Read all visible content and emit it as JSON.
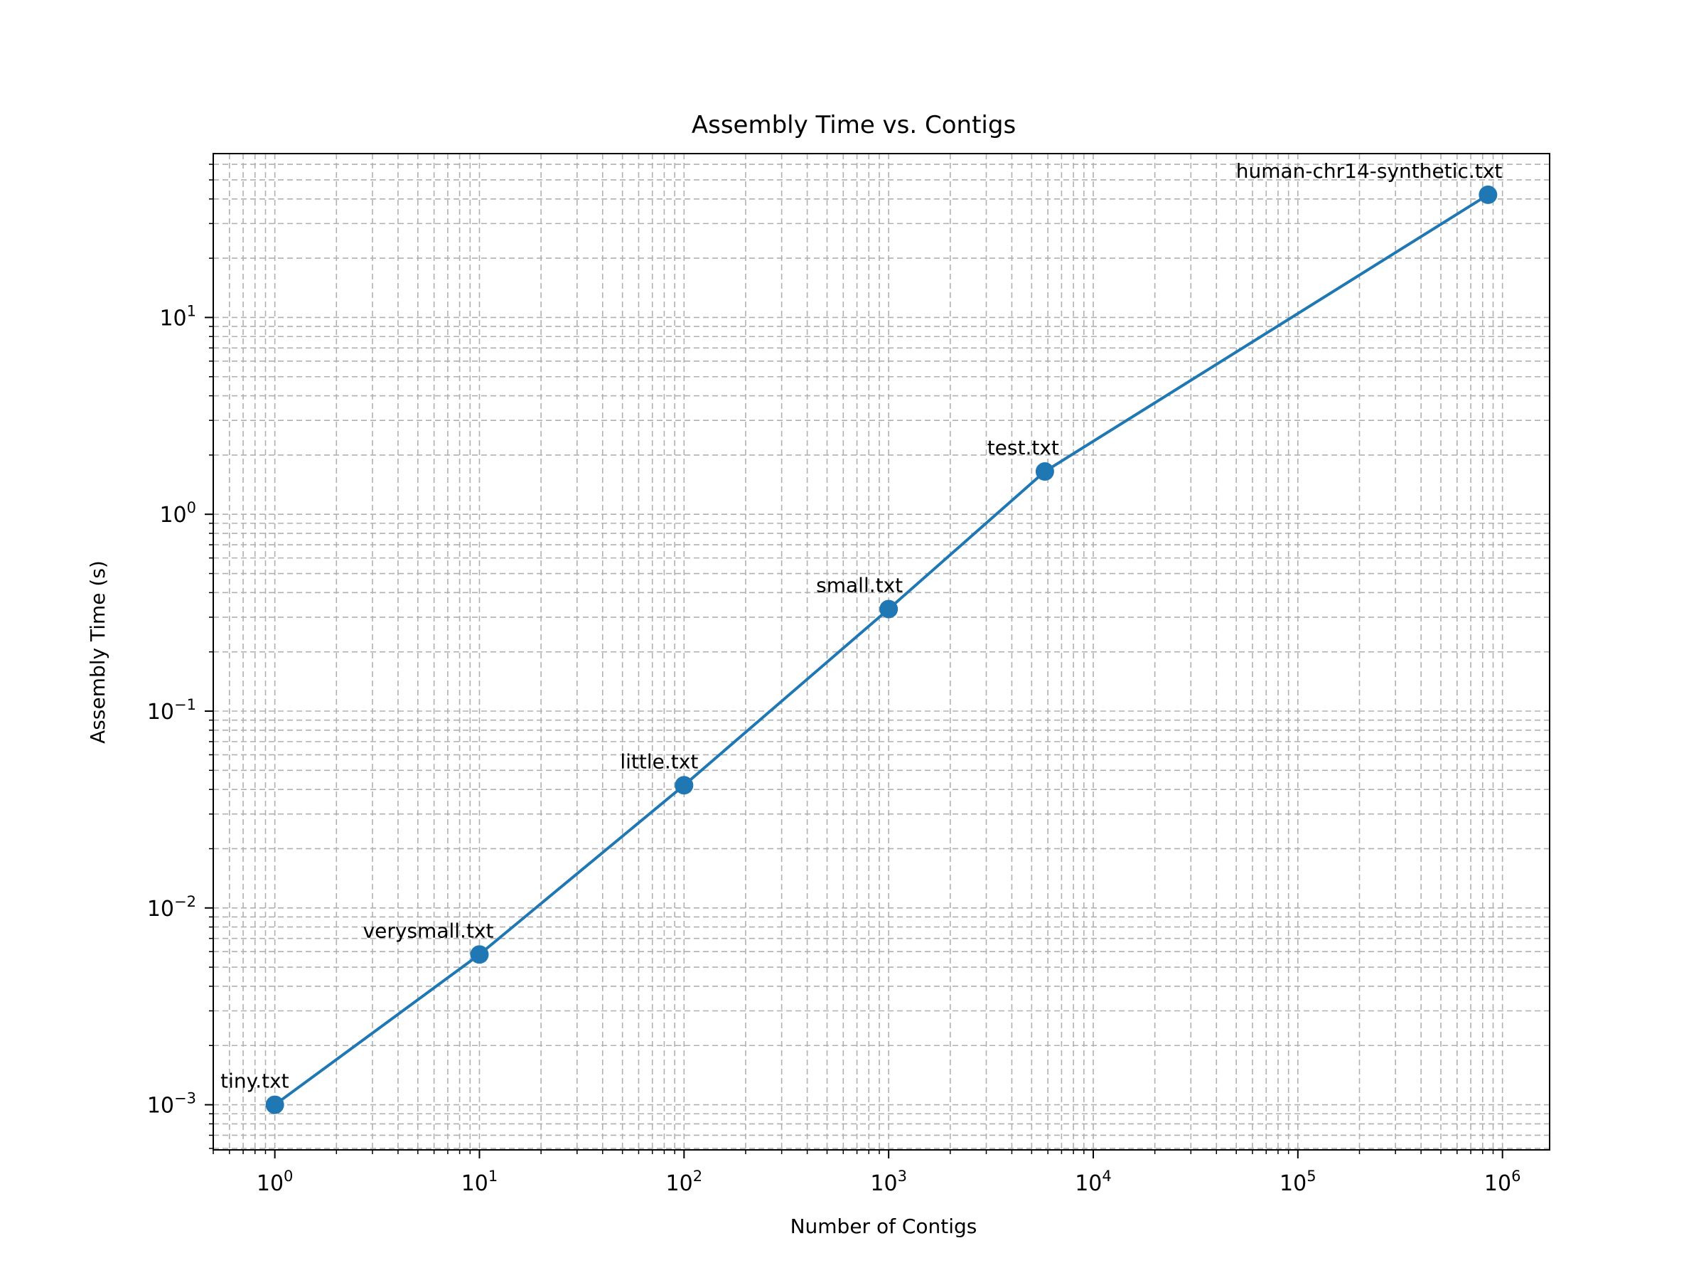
{
  "chart_data": {
    "type": "line",
    "title": "Assembly Time vs. Contigs",
    "xlabel": "Number of Contigs",
    "ylabel": "Assembly Time (s)",
    "xscale": "log",
    "yscale": "log",
    "xlim": [
      0.5,
      1700000
    ],
    "ylim": [
      0.00059,
      68
    ],
    "grid": true,
    "grid_which": "both",
    "grid_style": "dashed",
    "x_ticks": [
      {
        "base": "10",
        "exp": "0"
      },
      {
        "base": "10",
        "exp": "1"
      },
      {
        "base": "10",
        "exp": "2"
      },
      {
        "base": "10",
        "exp": "3"
      },
      {
        "base": "10",
        "exp": "4"
      },
      {
        "base": "10",
        "exp": "5"
      },
      {
        "base": "10",
        "exp": "6"
      }
    ],
    "y_ticks": [
      {
        "base": "10",
        "exp": "−3"
      },
      {
        "base": "10",
        "exp": "−2"
      },
      {
        "base": "10",
        "exp": "−1"
      },
      {
        "base": "10",
        "exp": "0"
      },
      {
        "base": "10",
        "exp": "1"
      }
    ],
    "series": [
      {
        "color": "#1f77b4",
        "marker": "circle",
        "points": [
          {
            "label": "tiny.txt",
            "x": 1,
            "y": 0.001
          },
          {
            "label": "verysmall.txt",
            "x": 10,
            "y": 0.0058
          },
          {
            "label": "little.txt",
            "x": 100,
            "y": 0.042
          },
          {
            "label": "small.txt",
            "x": 1000,
            "y": 0.33
          },
          {
            "label": "test.txt",
            "x": 5800,
            "y": 1.65
          },
          {
            "label": "human-chr14-synthetic.txt",
            "x": 850000,
            "y": 42
          }
        ]
      }
    ]
  }
}
